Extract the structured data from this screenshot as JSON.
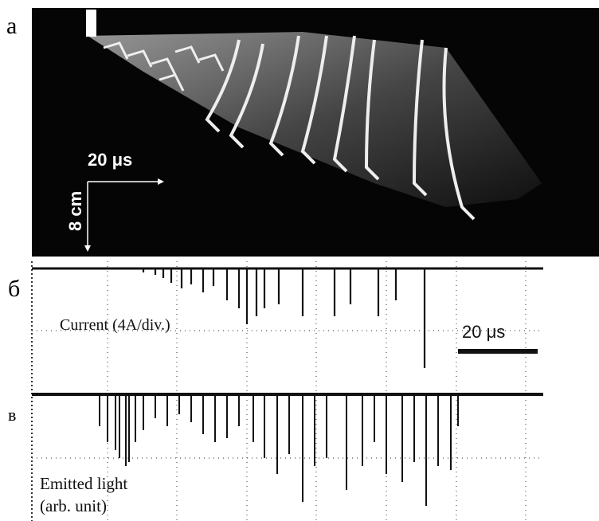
{
  "panels": [
    {
      "label": "а",
      "time_scale": "20 μs",
      "length_scale": "8 cm"
    },
    {
      "label": "б",
      "trace": "Current (4A/div.)",
      "time_scale": "20 μs"
    },
    {
      "label": "в",
      "trace_lines": [
        "Emitted light",
        "(arb. unit)"
      ]
    }
  ]
}
